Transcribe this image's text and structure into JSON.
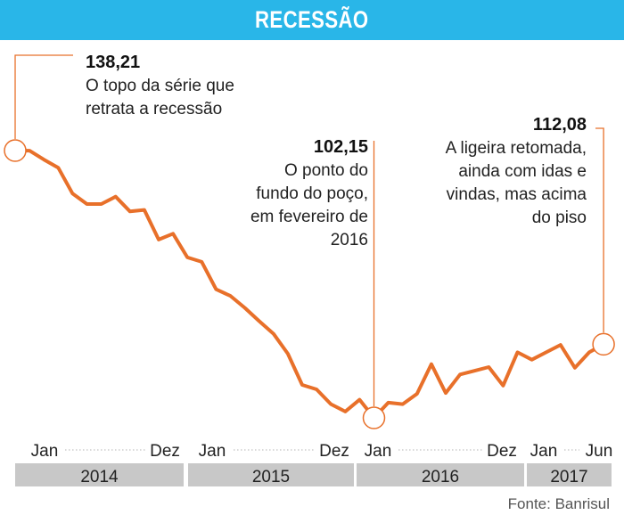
{
  "header": {
    "title": "RECESSÃO"
  },
  "source": "Fonte: Banrisul",
  "colors": {
    "title_bg": "#29b6e8",
    "line": "#e8702a",
    "year_band": "#c8c8c8",
    "marker_fill": "#ffffff"
  },
  "chart_data": {
    "type": "line",
    "title": "RECESSÃO",
    "xlabel": "",
    "ylabel": "",
    "ylim": [
      100,
      140
    ],
    "grid": false,
    "x_tick_labels": [
      "Jan",
      "Dez",
      "Jan",
      "Dez",
      "Jan",
      "Dez",
      "Jan",
      "Jun"
    ],
    "years": [
      "2014",
      "2015",
      "2016",
      "2017"
    ],
    "series": [
      {
        "name": "",
        "x": [
          "2014-01",
          "2014-02",
          "2014-03",
          "2014-04",
          "2014-05",
          "2014-06",
          "2014-07",
          "2014-08",
          "2014-09",
          "2014-10",
          "2014-11",
          "2014-12",
          "2015-01",
          "2015-02",
          "2015-03",
          "2015-04",
          "2015-05",
          "2015-06",
          "2015-07",
          "2015-08",
          "2015-09",
          "2015-10",
          "2015-11",
          "2015-12",
          "2016-01",
          "2016-02",
          "2016-03",
          "2016-04",
          "2016-05",
          "2016-06",
          "2016-07",
          "2016-08",
          "2016-09",
          "2016-10",
          "2016-11",
          "2016-12",
          "2017-01",
          "2017-02",
          "2017-03",
          "2017-04",
          "2017-05",
          "2017-06"
        ],
        "values": [
          138.21,
          138.2,
          137.0,
          135.9,
          132.4,
          131.0,
          131.0,
          132.0,
          130.0,
          130.2,
          126.2,
          127.0,
          123.8,
          123.2,
          119.5,
          118.6,
          117.0,
          115.2,
          113.5,
          110.8,
          106.6,
          106.0,
          104.0,
          103.0,
          104.6,
          102.15,
          104.2,
          104.0,
          105.4,
          109.4,
          105.5,
          108.0,
          108.5,
          109.0,
          106.5,
          111.0,
          110.0,
          111.0,
          112.0,
          108.9,
          111.0,
          112.08
        ]
      }
    ],
    "annotations": [
      {
        "x": "2014-01",
        "value": "138,21",
        "text": [
          "O topo da série que",
          "retrata a recessão"
        ]
      },
      {
        "x": "2016-02",
        "value": "102,15",
        "text": [
          "O ponto do",
          "fundo do poço,",
          "em fevereiro de",
          "2016"
        ]
      },
      {
        "x": "2017-06",
        "value": "112,08",
        "text": [
          "A ligeira retomada,",
          "ainda com idas e",
          "vindas, mas acima",
          "do piso"
        ]
      }
    ]
  }
}
